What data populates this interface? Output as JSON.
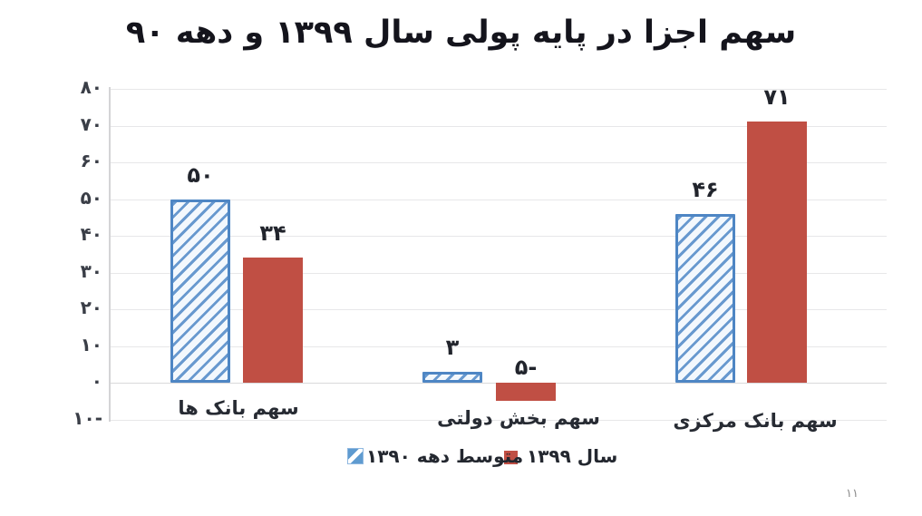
{
  "title": "سهم اجزا در پایه پولی سال ۱۳۹۹ و دهه ۹۰",
  "page_number": "۱۱",
  "y_axis": {
    "tick_labels": [
      "۸۰",
      "۷۰",
      "۶۰",
      "۵۰",
      "۴۰",
      "۳۰",
      "۲۰",
      "۱۰",
      "۰",
      "-۱۰"
    ],
    "tick_values": [
      80,
      70,
      60,
      50,
      40,
      30,
      20,
      10,
      0,
      -10
    ]
  },
  "legend": {
    "items": [
      {
        "label": "سال ۱۳۹۹",
        "swatch": "solid-red",
        "color": "#c04f44"
      },
      {
        "label": "متوسط دهه ۱۳۹۰",
        "swatch": "hatched-blue",
        "color": "#4e86c4"
      }
    ]
  },
  "chart_data": {
    "type": "bar",
    "title": "سهم اجزا در پایه پولی سال ۱۳۹۹ و دهه ۹۰",
    "categories": [
      "سهم بانک ها",
      "سهم بخش دولتی",
      "سهم بانک مرکزی"
    ],
    "categories_order": "left_to_right_on_screen",
    "series": [
      {
        "name": "متوسط دهه ۱۳۹۰",
        "style": "hatched",
        "color": "#4e86c4",
        "values": [
          50,
          3,
          46
        ],
        "value_labels": [
          "۵۰",
          "۳",
          "۴۶"
        ]
      },
      {
        "name": "سال ۱۳۹۹",
        "style": "solid",
        "color": "#c04f44",
        "values": [
          34,
          -5,
          71
        ],
        "value_labels": [
          "۳۴",
          "-۵",
          "۷۱"
        ]
      }
    ],
    "ylim": [
      -10,
      80
    ],
    "y_tick_step": 10,
    "grid": true,
    "legend_position": "bottom",
    "direction": "rtl"
  },
  "colors": {
    "background": "#ffffff",
    "title_text": "#14141c",
    "axis_text": "#3a3e47",
    "value_text": "#21242c",
    "gridline": "#e7e7e9",
    "bar_red": "#c04f44",
    "bar_blue_border": "#4e86c4",
    "bar_blue_hatch": "#6899cf",
    "page_number_text": "#8d8d8d"
  }
}
